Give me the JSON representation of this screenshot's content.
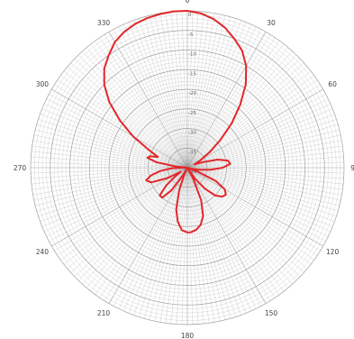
{
  "chart_data": {
    "type": "line",
    "coordinate_system": "polar",
    "angle_unit": "degrees",
    "angle_zero": "top",
    "angle_direction": "clockwise",
    "radial_range": [
      -40,
      0
    ],
    "radial_ticks": [
      0,
      -5,
      -10,
      -15,
      -20,
      -25,
      -30,
      -35,
      -40
    ],
    "radial_tick_labels": [
      "0",
      "-5",
      "-10",
      "-15",
      "-20",
      "-25",
      "-30",
      "-35",
      "-40"
    ],
    "angular_tick_labels": [
      {
        "angle": 0,
        "label": "0"
      },
      {
        "angle": 30,
        "label": "30"
      },
      {
        "angle": 60,
        "label": "60"
      },
      {
        "angle": 90,
        "label": "90"
      },
      {
        "angle": 120,
        "label": "120"
      },
      {
        "angle": 150,
        "label": "150"
      },
      {
        "angle": 180,
        "label": "180"
      },
      {
        "angle": 210,
        "label": "210"
      },
      {
        "angle": 240,
        "label": "240"
      },
      {
        "angle": 270,
        "label": "270"
      },
      {
        "angle": 300,
        "label": "300"
      },
      {
        "angle": 330,
        "label": "330"
      }
    ],
    "grid": true,
    "legend": "none",
    "colors": {
      "series": "#e3262a",
      "grid": "#9a9a9a",
      "labels": "#444444"
    },
    "series": [
      {
        "points": [
          [
            0,
            0
          ],
          [
            5,
            -0.5
          ],
          [
            10,
            -1.5
          ],
          [
            15,
            -3
          ],
          [
            20,
            -5
          ],
          [
            25,
            -7
          ],
          [
            30,
            -10
          ],
          [
            35,
            -14
          ],
          [
            40,
            -19
          ],
          [
            45,
            -24
          ],
          [
            50,
            -29
          ],
          [
            55,
            -33
          ],
          [
            60,
            -36
          ],
          [
            65,
            -38
          ],
          [
            70,
            -36
          ],
          [
            75,
            -32
          ],
          [
            80,
            -29.5
          ],
          [
            85,
            -29
          ],
          [
            90,
            -31
          ],
          [
            95,
            -34
          ],
          [
            100,
            -37
          ],
          [
            105,
            -39
          ],
          [
            108,
            -40
          ],
          [
            111,
            -37
          ],
          [
            115,
            -32
          ],
          [
            120,
            -29
          ],
          [
            125,
            -28
          ],
          [
            130,
            -28.5
          ],
          [
            135,
            -30
          ],
          [
            140,
            -33
          ],
          [
            145,
            -36.5
          ],
          [
            149,
            -40
          ],
          [
            152,
            -37
          ],
          [
            157,
            -31
          ],
          [
            162,
            -27
          ],
          [
            167,
            -25
          ],
          [
            172,
            -24
          ],
          [
            177,
            -23.5
          ],
          [
            180,
            -23.5
          ],
          [
            185,
            -24
          ],
          [
            190,
            -26
          ],
          [
            195,
            -29
          ],
          [
            200,
            -34
          ],
          [
            204,
            -38
          ],
          [
            207,
            -40
          ],
          [
            210,
            -38
          ],
          [
            215,
            -33
          ],
          [
            220,
            -30
          ],
          [
            225,
            -30
          ],
          [
            230,
            -33
          ],
          [
            234,
            -36
          ],
          [
            238,
            -38
          ],
          [
            243,
            -34
          ],
          [
            248,
            -30
          ],
          [
            253,
            -29
          ],
          [
            258,
            -30.5
          ],
          [
            263,
            -33
          ],
          [
            268,
            -36
          ],
          [
            271,
            -39
          ],
          [
            273,
            -40
          ],
          [
            276,
            -37
          ],
          [
            280,
            -32
          ],
          [
            284,
            -29.5
          ],
          [
            287,
            -30
          ],
          [
            290,
            -32
          ],
          [
            295,
            -29
          ],
          [
            300,
            -24
          ],
          [
            305,
            -19
          ],
          [
            310,
            -14
          ],
          [
            315,
            -10
          ],
          [
            320,
            -7
          ],
          [
            325,
            -5
          ],
          [
            330,
            -3
          ],
          [
            335,
            -1.8
          ],
          [
            340,
            -1
          ],
          [
            345,
            -0.5
          ],
          [
            350,
            -0.2
          ],
          [
            355,
            0
          ],
          [
            360,
            0
          ]
        ]
      }
    ]
  }
}
